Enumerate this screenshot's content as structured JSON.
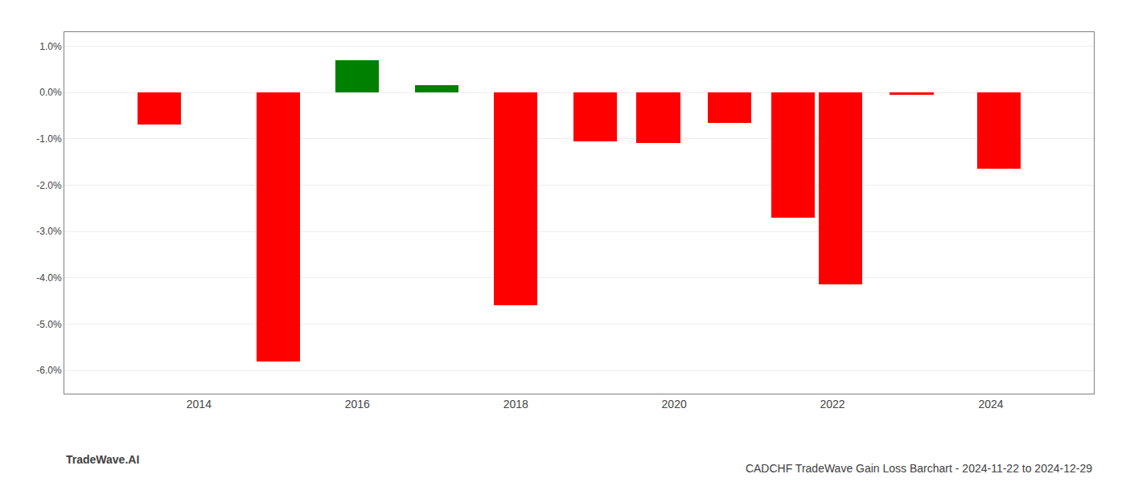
{
  "chart_data": {
    "type": "bar",
    "title": "CADCHF TradeWave Gain Loss Barchart - 2024-11-22 to 2024-12-29",
    "annotations": [
      {
        "text": "TradeWave.AI"
      }
    ],
    "x": [
      2013.5,
      2015.0,
      2016.0,
      2017.0,
      2018.0,
      2019.0,
      2019.8,
      2020.7,
      2021.5,
      2022.1,
      2023.0,
      2024.1
    ],
    "values": [
      -0.7,
      -5.8,
      0.7,
      0.15,
      -4.6,
      -1.05,
      -1.1,
      -0.65,
      -2.7,
      -4.15,
      -0.05,
      -1.65
    ],
    "colors": [
      "#ff0000",
      "#ff0000",
      "#008000",
      "#008000",
      "#ff0000",
      "#ff0000",
      "#ff0000",
      "#ff0000",
      "#ff0000",
      "#ff0000",
      "#ff0000",
      "#ff0000"
    ],
    "xlim": [
      2012.3,
      2025.3
    ],
    "xticks": [
      2014,
      2016,
      2018,
      2020,
      2022,
      2024
    ],
    "ylim": [
      -6.5,
      1.3
    ],
    "yticks": [
      {
        "value": 1.0,
        "label": "1.0%"
      },
      {
        "value": 0.0,
        "label": "0.0%"
      },
      {
        "value": -1.0,
        "label": "-1.0%"
      },
      {
        "value": -2.0,
        "label": "-2.0%"
      },
      {
        "value": -3.0,
        "label": "-3.0%"
      },
      {
        "value": -4.0,
        "label": "-4.0%"
      },
      {
        "value": -5.0,
        "label": "-5.0%"
      },
      {
        "value": -6.0,
        "label": "-6.0%"
      }
    ],
    "grid": "y"
  }
}
